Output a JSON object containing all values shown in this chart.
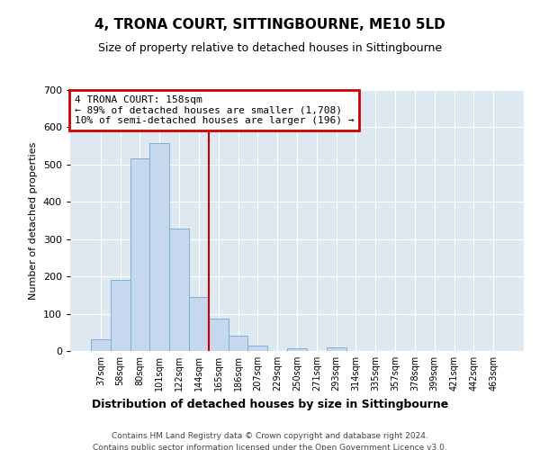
{
  "title": "4, TRONA COURT, SITTINGBOURNE, ME10 5LD",
  "subtitle": "Size of property relative to detached houses in Sittingbourne",
  "xlabel": "Distribution of detached houses by size in Sittingbourne",
  "ylabel": "Number of detached properties",
  "footer_lines": [
    "Contains HM Land Registry data © Crown copyright and database right 2024.",
    "Contains public sector information licensed under the Open Government Licence v3.0."
  ],
  "bar_labels": [
    "37sqm",
    "58sqm",
    "80sqm",
    "101sqm",
    "122sqm",
    "144sqm",
    "165sqm",
    "186sqm",
    "207sqm",
    "229sqm",
    "250sqm",
    "271sqm",
    "293sqm",
    "314sqm",
    "335sqm",
    "357sqm",
    "378sqm",
    "399sqm",
    "421sqm",
    "442sqm",
    "463sqm"
  ],
  "bar_values": [
    32,
    190,
    517,
    557,
    329,
    144,
    86,
    40,
    14,
    0,
    8,
    0,
    9,
    0,
    0,
    0,
    0,
    0,
    0,
    0,
    0
  ],
  "bar_color": "#c5d8ed",
  "bar_edge_color": "#7bafd4",
  "ylim": [
    0,
    700
  ],
  "yticks": [
    0,
    100,
    200,
    300,
    400,
    500,
    600,
    700
  ],
  "vline_color": "#cc0000",
  "annotation_title": "4 TRONA COURT: 158sqm",
  "annotation_line1": "← 89% of detached houses are smaller (1,708)",
  "annotation_line2": "10% of semi-detached houses are larger (196) →",
  "annotation_box_color": "#cc0000",
  "background_color": "#dde8f0"
}
